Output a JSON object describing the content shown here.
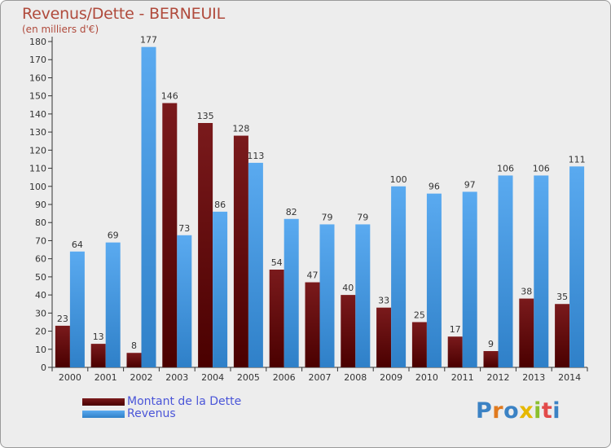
{
  "title": "Revenus/Dette - BERNEUIL",
  "subtitle": "(en milliers d'€)",
  "logo": {
    "letters": [
      {
        "ch": "P",
        "color": "#3b82c4"
      },
      {
        "ch": "r",
        "color": "#e07a1f"
      },
      {
        "ch": "o",
        "color": "#3b82c4"
      },
      {
        "ch": "x",
        "color": "#e6b800"
      },
      {
        "ch": "i",
        "color": "#8bbf2f"
      },
      {
        "ch": "t",
        "color": "#e24a4a"
      },
      {
        "ch": "i",
        "color": "#3b82c4"
      }
    ]
  },
  "chart_data": {
    "type": "bar",
    "categories": [
      "2000",
      "2001",
      "2002",
      "2003",
      "2004",
      "2005",
      "2006",
      "2007",
      "2008",
      "2009",
      "2010",
      "2011",
      "2012",
      "2013",
      "2014"
    ],
    "series": [
      {
        "name": "Montant de la Dette",
        "color": "#6e1417",
        "values": [
          23,
          13,
          8,
          146,
          135,
          128,
          54,
          47,
          40,
          33,
          25,
          17,
          9,
          38,
          35
        ]
      },
      {
        "name": "Revenus",
        "color": "#4a9fe6",
        "values": [
          64,
          69,
          177,
          73,
          86,
          113,
          82,
          79,
          79,
          100,
          96,
          97,
          106,
          106,
          111
        ]
      }
    ],
    "ylim": [
      0,
      180
    ],
    "ytick_step": 10,
    "grid": false,
    "legend_position": "bottom-left",
    "data_labels": true
  }
}
